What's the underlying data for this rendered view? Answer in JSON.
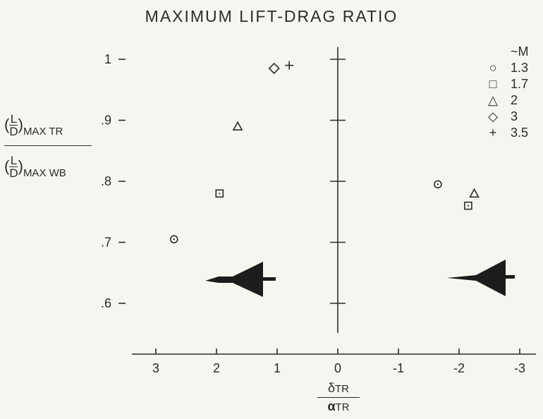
{
  "chart_data": {
    "type": "scatter",
    "title": "MAXIMUM LIFT-DRAG RATIO",
    "ylabel": {
      "numerator_fraction": [
        "L",
        "D"
      ],
      "numerator_subscript": "MAX TR",
      "denominator_fraction": [
        "L",
        "D"
      ],
      "denominator_subscript": "MAX WB"
    },
    "xlabel": {
      "numerator": "δ",
      "numerator_sub": "TR",
      "denominator": "α",
      "denominator_sub": "TR"
    },
    "xlim": [
      3.4,
      -3.4
    ],
    "ylim": [
      0.555,
      1.02
    ],
    "x_ticks": [
      3,
      2,
      1,
      0,
      -1,
      -2,
      -3
    ],
    "x_tick_labels": [
      "3",
      "2",
      "1",
      "0",
      "-1",
      "-2",
      "-3"
    ],
    "y_ticks": [
      0.6,
      0.7,
      0.8,
      0.9,
      1.0
    ],
    "y_tick_labels": [
      ".6",
      ".7",
      ".8",
      ".9",
      "1"
    ],
    "legend_title": "~M",
    "series": [
      {
        "name": "1.3",
        "marker": "circle",
        "points": [
          [
            2.7,
            0.705
          ],
          [
            -1.65,
            0.795
          ]
        ]
      },
      {
        "name": "1.7",
        "marker": "square",
        "points": [
          [
            1.95,
            0.78
          ],
          [
            -2.15,
            0.76
          ]
        ]
      },
      {
        "name": "2",
        "marker": "triangle",
        "points": [
          [
            1.65,
            0.89
          ],
          [
            -2.25,
            0.78
          ]
        ]
      },
      {
        "name": "3",
        "marker": "diamond",
        "points": [
          [
            1.05,
            0.985
          ]
        ]
      },
      {
        "name": "3.5",
        "marker": "plus",
        "points": [
          [
            0.8,
            0.99
          ]
        ]
      }
    ],
    "grid": false,
    "legend_position": "top-right"
  }
}
